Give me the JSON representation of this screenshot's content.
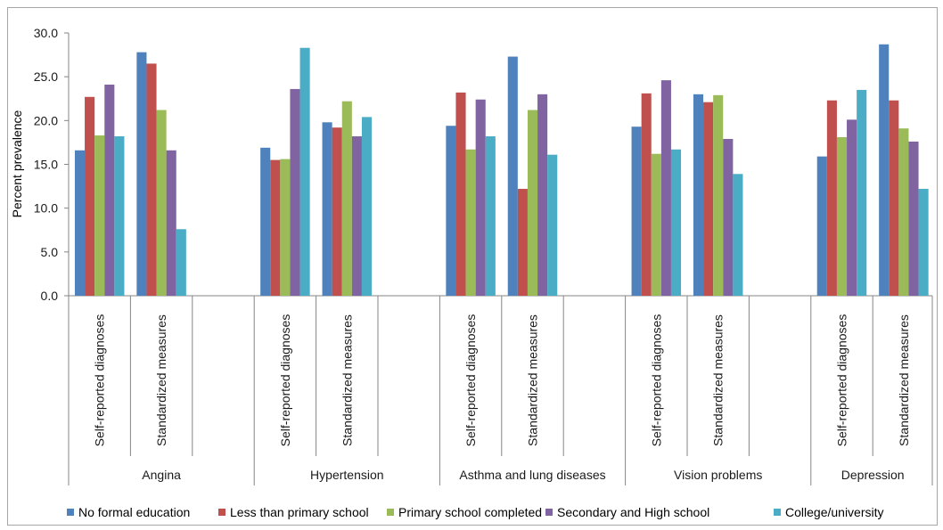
{
  "chart_data": {
    "type": "bar",
    "ylabel": "Percent prevalence",
    "ylim": [
      0,
      30
    ],
    "yticks": [
      "0.0",
      "5.0",
      "10.0",
      "15.0",
      "20.0",
      "25.0",
      "30.0"
    ],
    "groups": [
      "Angina",
      "Hypertension",
      "Asthma and lung diseases",
      "Vision problems",
      "Depression"
    ],
    "subcategories": [
      "Self-reported diagnoses",
      "Standardized measures"
    ],
    "categories": [
      "Angina | Self-reported diagnoses",
      "Angina | Standardized measures",
      "Hypertension | Self-reported diagnoses",
      "Hypertension | Standardized measures",
      "Asthma and lung diseases | Self-reported diagnoses",
      "Asthma and lung diseases | Standardized measures",
      "Vision problems | Self-reported diagnoses",
      "Vision problems | Standardized measures",
      "Depression | Self-reported diagnoses",
      "Depression | Standardized measures"
    ],
    "series": [
      {
        "name": "No formal education",
        "color": "#4f81bd",
        "values": [
          16.6,
          27.8,
          16.9,
          19.8,
          19.4,
          27.3,
          19.3,
          23.0,
          15.9,
          28.7
        ]
      },
      {
        "name": "Less than primary school",
        "color": "#c0504d",
        "values": [
          22.7,
          26.5,
          15.5,
          19.2,
          23.2,
          12.2,
          23.1,
          22.1,
          22.3,
          22.3
        ]
      },
      {
        "name": "Primary school completed",
        "color": "#9bbb59",
        "values": [
          18.3,
          21.2,
          15.6,
          22.2,
          16.7,
          21.2,
          16.2,
          22.9,
          18.1,
          19.1
        ]
      },
      {
        "name": "Secondary and High school",
        "color": "#8064a2",
        "values": [
          24.1,
          16.6,
          23.6,
          18.2,
          22.4,
          23.0,
          24.6,
          17.9,
          20.1,
          17.6
        ]
      },
      {
        "name": "College/university",
        "color": "#4bacc6",
        "values": [
          18.2,
          7.6,
          28.3,
          20.4,
          18.2,
          16.1,
          16.7,
          13.9,
          23.5,
          12.2
        ]
      }
    ],
    "grid": false,
    "legend_position": "bottom"
  }
}
